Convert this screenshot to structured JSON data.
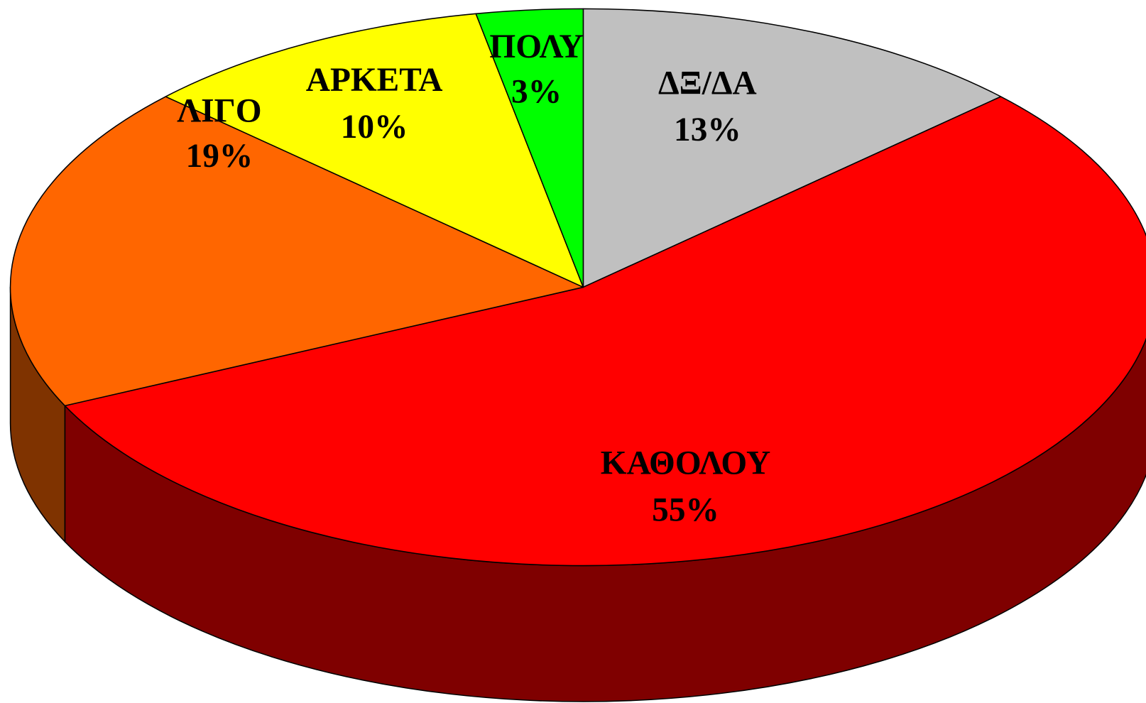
{
  "chart_data": {
    "type": "pie3d",
    "categories": [
      "ΔΞ/ΔΑ",
      "ΚΑΘΟΛΟΥ",
      "ΛΙΓΟ",
      "ΑΡΚΕΤΑ",
      "ΠΟΛΥ"
    ],
    "values": [
      13,
      55,
      19,
      10,
      3
    ],
    "value_labels": [
      "13%",
      "55%",
      "19%",
      "10%",
      "3%"
    ],
    "colors": [
      "#c0c0c0",
      "#ff0000",
      "#ff6600",
      "#ffff00",
      "#00ff00"
    ]
  }
}
